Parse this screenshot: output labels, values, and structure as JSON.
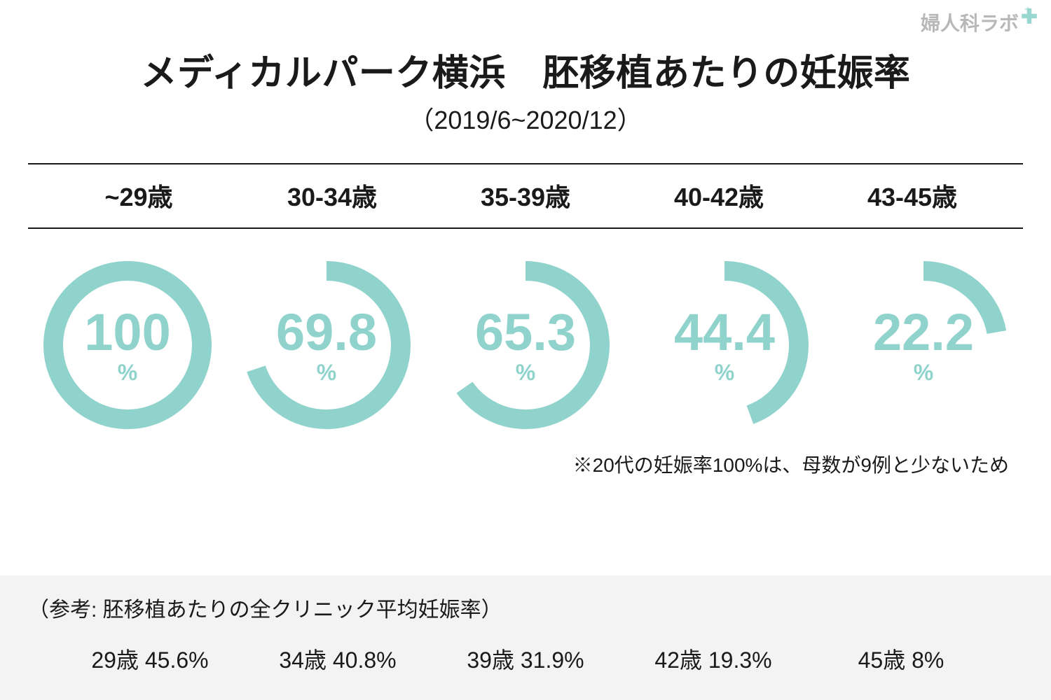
{
  "logo": {
    "text": "婦人科ラボ",
    "icon_color": "#8fd3cc"
  },
  "header": {
    "title": "メディカルパーク横浜　胚移植あたりの妊娠率",
    "subtitle": "（2019/6~2020/12）"
  },
  "chart": {
    "type": "radial-progress",
    "ring_color": "#8fd3cc",
    "text_color": "#8fd3cc",
    "background_color": "#ffffff",
    "stroke_width": 28,
    "ring_radius": 106,
    "items": [
      {
        "label": "~29歳",
        "value": 100,
        "display": "100"
      },
      {
        "label": "30-34歳",
        "value": 69.8,
        "display": "69.8"
      },
      {
        "label": "35-39歳",
        "value": 65.3,
        "display": "65.3"
      },
      {
        "label": "40-42歳",
        "value": 44.4,
        "display": "44.4"
      },
      {
        "label": "43-45歳",
        "value": 22.2,
        "display": "22.2"
      }
    ],
    "unit": "%"
  },
  "note": "※20代の妊娠率100%は、母数が9例と少ないため",
  "reference": {
    "title": "（参考: 胚移植あたりの全クリニック平均妊娠率）",
    "background_color": "#f3f3f3",
    "items": [
      {
        "text": "29歳 45.6%"
      },
      {
        "text": "34歳 40.8%"
      },
      {
        "text": "39歳 31.9%"
      },
      {
        "text": "42歳 19.3%"
      },
      {
        "text": "45歳 8%"
      }
    ]
  }
}
